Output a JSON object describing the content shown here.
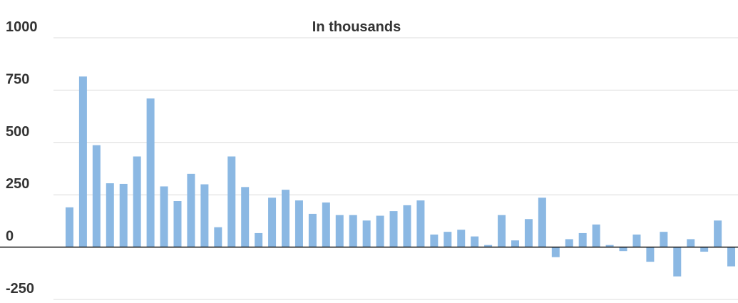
{
  "chart_data": {
    "type": "bar",
    "title": "In thousands",
    "categories": [
      null,
      null,
      null,
      null,
      null,
      null,
      null,
      null,
      null,
      null,
      null,
      null,
      null,
      null,
      null,
      null,
      null,
      null,
      null,
      null,
      null,
      null,
      null,
      null,
      null,
      null,
      null,
      null,
      null,
      null,
      null,
      null,
      null,
      null,
      null,
      null,
      null,
      null,
      null,
      null,
      null,
      null,
      null,
      null,
      null,
      null,
      null,
      null,
      null,
      null
    ],
    "values": [
      190,
      815,
      487,
      305,
      302,
      433,
      710,
      290,
      220,
      350,
      300,
      95,
      433,
      287,
      67,
      236,
      274,
      223,
      159,
      213,
      153,
      153,
      127,
      150,
      172,
      200,
      223,
      60,
      73,
      83,
      51,
      10,
      153,
      32,
      134,
      236,
      -48,
      38,
      67,
      108,
      10,
      -19,
      60,
      -70,
      73,
      -140,
      38,
      -22,
      127,
      -92
    ],
    "color": "#8bb8e3",
    "ylim": [
      -250,
      1000
    ],
    "yticks": [
      -250,
      0,
      250,
      500,
      750,
      1000
    ],
    "grid": true
  }
}
